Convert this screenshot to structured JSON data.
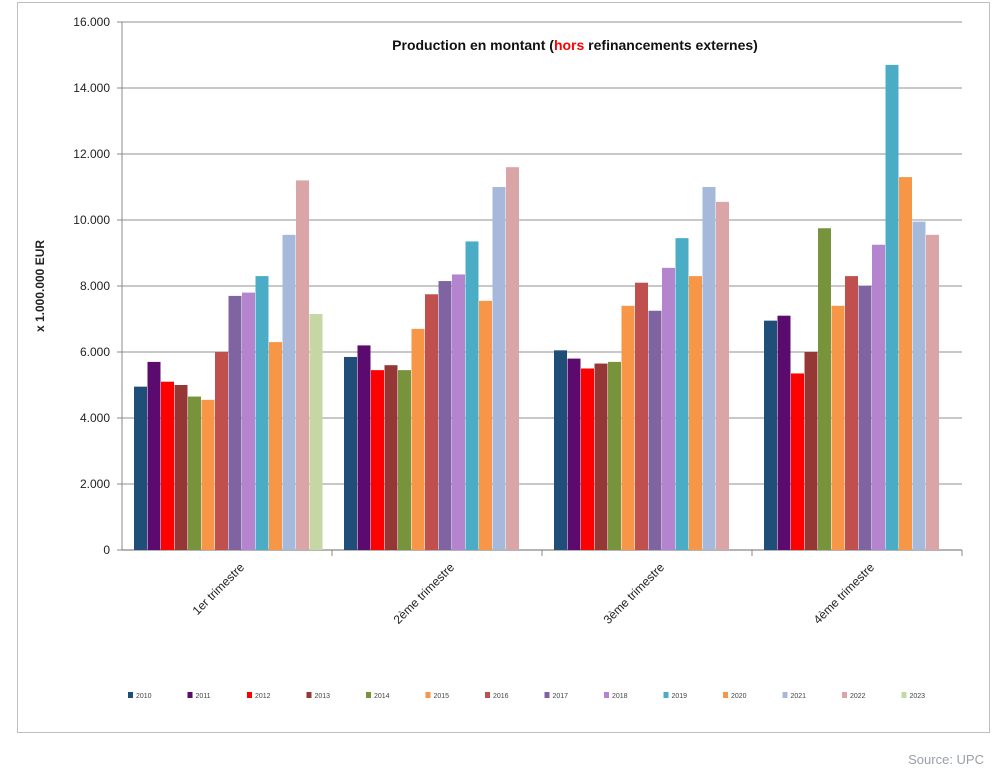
{
  "source": "Source: UPC",
  "chart_data": {
    "type": "bar",
    "title_parts": [
      "Production en montant (",
      "hors",
      " refinancements externes)"
    ],
    "title_highlight_color": "#ff0000",
    "ylabel": "x 1.000.000  EUR",
    "xlabel": "",
    "ylim": [
      0,
      16000
    ],
    "yticks": [
      0,
      2000,
      4000,
      6000,
      8000,
      10000,
      12000,
      14000,
      16000
    ],
    "ytick_labels": [
      "0",
      "2.000",
      "4.000",
      "6.000",
      "8.000",
      "10.000",
      "12.000",
      "14.000",
      "16.000"
    ],
    "grid": true,
    "legend_position": "bottom",
    "categories": [
      "1er trimestre",
      "2ème trimestre",
      "3ème trimestre",
      "4ème trimestre"
    ],
    "series": [
      {
        "name": "2010",
        "color": "#1f4e79",
        "values": [
          4950,
          5850,
          6050,
          6950
        ]
      },
      {
        "name": "2011",
        "color": "#5b0a6e",
        "values": [
          5700,
          6200,
          5800,
          7100
        ]
      },
      {
        "name": "2012",
        "color": "#ff0000",
        "values": [
          5100,
          5450,
          5500,
          5350
        ]
      },
      {
        "name": "2013",
        "color": "#953735",
        "values": [
          5000,
          5600,
          5650,
          6000
        ]
      },
      {
        "name": "2014",
        "color": "#77933c",
        "values": [
          4650,
          5450,
          5700,
          9750
        ]
      },
      {
        "name": "2015",
        "color": "#f79646",
        "values": [
          4550,
          6700,
          7400,
          7400
        ]
      },
      {
        "name": "2016",
        "color": "#c0504d",
        "values": [
          6000,
          7750,
          8100,
          8300
        ]
      },
      {
        "name": "2017",
        "color": "#8064a2",
        "values": [
          7700,
          8150,
          7250,
          8000
        ]
      },
      {
        "name": "2018",
        "color": "#b584cf",
        "values": [
          7800,
          8350,
          8550,
          9250
        ]
      },
      {
        "name": "2019",
        "color": "#4bacc6",
        "values": [
          8300,
          9350,
          9450,
          14700
        ]
      },
      {
        "name": "2020",
        "color": "#f79646",
        "values": [
          6300,
          7550,
          8300,
          11300
        ]
      },
      {
        "name": "2021",
        "color": "#a7b9db",
        "values": [
          9550,
          11000,
          11000,
          9950
        ]
      },
      {
        "name": "2022",
        "color": "#d9a5a6",
        "values": [
          11200,
          11600,
          10550,
          9550
        ]
      },
      {
        "name": "2023",
        "color": "#c4d7a4",
        "values": [
          7150,
          null,
          null,
          null
        ]
      }
    ]
  }
}
